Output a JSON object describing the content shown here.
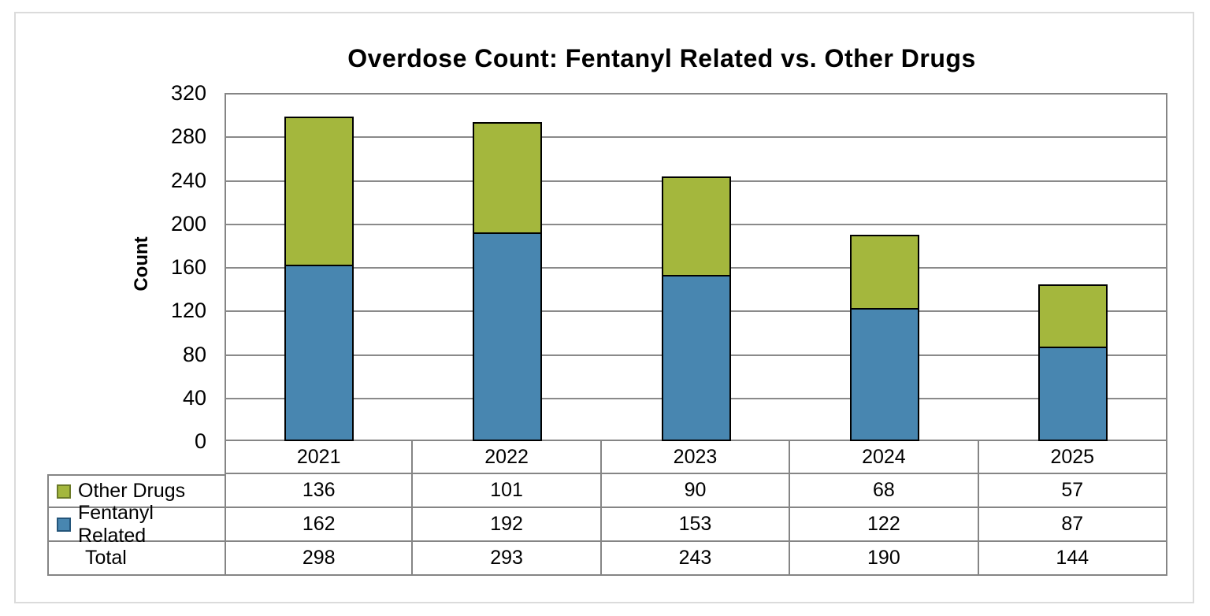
{
  "title": "Overdose Count: Fentanyl Related vs. Other Drugs",
  "chart_data": {
    "type": "bar",
    "stacked": true,
    "title": "Overdose Count: Fentanyl Related vs. Other Drugs",
    "xlabel": "",
    "ylabel": "Count",
    "ylim": [
      0,
      320
    ],
    "ytick_step": 40,
    "ytick_labels": [
      "0",
      "40",
      "80",
      "120",
      "160",
      "200",
      "240",
      "280",
      "320"
    ],
    "grid": true,
    "legend_position": "data-table-left",
    "categories": [
      "2021",
      "2022",
      "2023",
      "2024",
      "2025"
    ],
    "series": [
      {
        "name": "Fentanyl Related",
        "color": "#4886B0",
        "border_color": "#24557A",
        "values": [
          162,
          192,
          153,
          122,
          87
        ]
      },
      {
        "name": "Other Drugs",
        "color": "#A4B73D",
        "border_color": "#6B7A28",
        "values": [
          136,
          101,
          90,
          68,
          57
        ]
      }
    ],
    "data_table": {
      "row_order": [
        "Other Drugs",
        "Fentanyl Related",
        "Total"
      ],
      "rows": [
        {
          "label": "Other Drugs",
          "values": [
            136,
            101,
            90,
            68,
            57
          ]
        },
        {
          "label": "Fentanyl Related",
          "values": [
            162,
            192,
            153,
            122,
            87
          ]
        },
        {
          "label": "Total",
          "values": [
            298,
            293,
            243,
            190,
            144
          ]
        }
      ]
    }
  },
  "colors": {
    "fentanyl_blue": "#4886B0",
    "other_green": "#A4B73D",
    "bar_outline": "#000000",
    "grid_gray": "#8a8a8a",
    "table_border_gray": "#858585",
    "outer_frame_gray": "#DBDBDB"
  }
}
